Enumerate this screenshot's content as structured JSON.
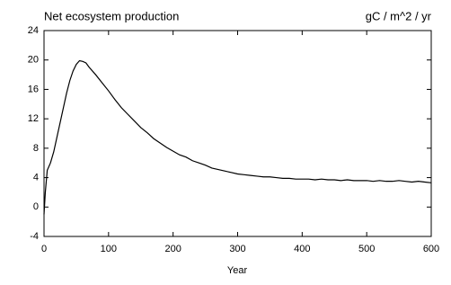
{
  "chart_data": {
    "type": "line",
    "title": "Net ecosystem production",
    "subtitle": "gC / m^2 / yr",
    "x_label": "Year",
    "x": [
      0,
      2,
      5,
      10,
      15,
      20,
      25,
      30,
      35,
      40,
      45,
      50,
      55,
      60,
      65,
      70,
      80,
      90,
      100,
      110,
      120,
      130,
      140,
      150,
      160,
      170,
      180,
      190,
      200,
      210,
      220,
      230,
      240,
      250,
      260,
      270,
      280,
      290,
      300,
      310,
      320,
      330,
      340,
      350,
      360,
      370,
      380,
      390,
      400,
      410,
      420,
      430,
      440,
      450,
      460,
      470,
      480,
      490,
      500,
      510,
      520,
      530,
      540,
      550,
      560,
      570,
      580,
      590,
      600
    ],
    "values": [
      -1,
      2,
      5,
      6,
      7.5,
      9.5,
      11.5,
      13.5,
      15.5,
      17.2,
      18.5,
      19.4,
      19.9,
      19.8,
      19.6,
      19.0,
      18.0,
      16.9,
      15.8,
      14.6,
      13.5,
      12.6,
      11.7,
      10.8,
      10.1,
      9.3,
      8.7,
      8.1,
      7.6,
      7.1,
      6.8,
      6.3,
      6.0,
      5.7,
      5.3,
      5.1,
      4.9,
      4.7,
      4.5,
      4.4,
      4.3,
      4.2,
      4.1,
      4.1,
      4.0,
      3.9,
      3.9,
      3.8,
      3.8,
      3.8,
      3.7,
      3.8,
      3.7,
      3.7,
      3.6,
      3.7,
      3.6,
      3.6,
      3.6,
      3.5,
      3.6,
      3.5,
      3.5,
      3.6,
      3.5,
      3.4,
      3.5,
      3.4,
      3.3
    ],
    "color": "#000000",
    "xlim": [
      0,
      600
    ],
    "xticks": [
      0,
      100,
      200,
      300,
      400,
      500,
      600
    ],
    "ylim": [
      -4,
      24
    ],
    "yticks": [
      -4,
      0,
      4,
      8,
      12,
      16,
      20,
      24
    ]
  }
}
